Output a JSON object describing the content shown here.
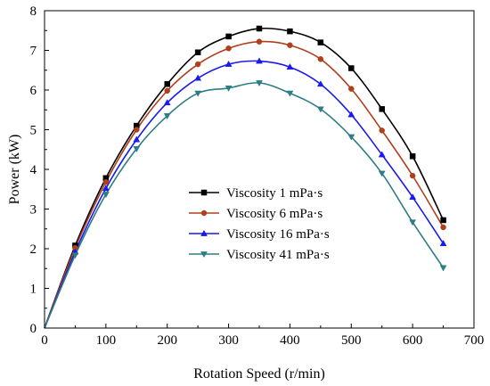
{
  "chart_data": {
    "type": "line",
    "title": "",
    "xlabel": "Rotation Speed (r/min)",
    "ylabel": "Power (kW)",
    "xlim": [
      0,
      700
    ],
    "ylim": [
      0,
      8
    ],
    "xticks": [
      0,
      100,
      200,
      300,
      400,
      500,
      600,
      700
    ],
    "yticks": [
      0,
      1,
      2,
      3,
      4,
      5,
      6,
      7,
      8
    ],
    "grid": false,
    "legend_position": "center",
    "x": [
      0,
      50,
      100,
      150,
      200,
      250,
      300,
      350,
      400,
      450,
      500,
      550,
      600,
      650
    ],
    "series": [
      {
        "name": "Viscosity 1 mPa·s",
        "color": "#000000",
        "marker": "square",
        "values": [
          0,
          2.08,
          3.78,
          5.1,
          6.15,
          6.95,
          7.35,
          7.55,
          7.48,
          7.2,
          6.55,
          5.52,
          4.33,
          2.72
        ]
      },
      {
        "name": "Viscosity 6 mPa·s",
        "color": "#b0401c",
        "marker": "circle",
        "values": [
          0,
          2.02,
          3.68,
          5.0,
          5.98,
          6.65,
          7.05,
          7.22,
          7.13,
          6.78,
          6.03,
          4.98,
          3.84,
          2.54
        ]
      },
      {
        "name": "Viscosity 16 mPa·s",
        "color": "#1a1aee",
        "marker": "triangle-up",
        "values": [
          0,
          1.92,
          3.52,
          4.75,
          5.68,
          6.3,
          6.65,
          6.73,
          6.58,
          6.15,
          5.38,
          4.37,
          3.3,
          2.13
        ]
      },
      {
        "name": "Viscosity 41 mPa·s",
        "color": "#2e7d86",
        "marker": "triangle-down",
        "values": [
          0,
          1.84,
          3.37,
          4.52,
          5.35,
          5.92,
          6.05,
          6.18,
          5.92,
          5.52,
          4.82,
          3.9,
          2.67,
          1.52
        ]
      }
    ]
  }
}
